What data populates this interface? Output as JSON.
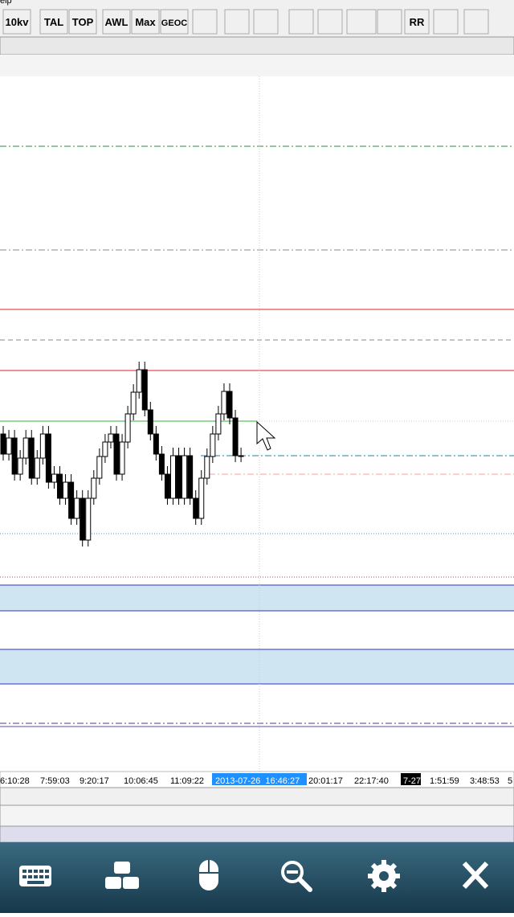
{
  "menu": {
    "partial_label": "elp"
  },
  "toolbar": {
    "buttons": [
      "10kv",
      "TAL",
      "TOP",
      "AWL",
      "Max",
      "GEOC",
      "RR"
    ]
  },
  "time_axis": {
    "labels": [
      "6:10:28",
      "7:59:03",
      "9:20:17",
      "10:06:45",
      "11:09:22",
      "2013-07-26  16:46:27",
      "20:01:17",
      "22:17:40",
      "7-27",
      "1:51:59",
      "3:48:53",
      "5"
    ]
  }
}
